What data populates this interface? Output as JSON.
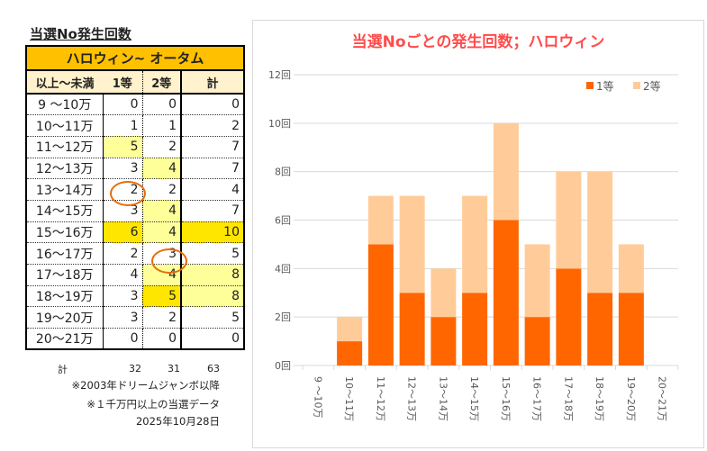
{
  "table": {
    "title": "当選No発生回数",
    "header": "ハロウィン~ オータム",
    "columns": [
      "以上～未満",
      "1等",
      "2等",
      "計"
    ],
    "rows": [
      {
        "range": "9 ～10万",
        "first": 0,
        "second": 0,
        "total": 0
      },
      {
        "range": "10～11万",
        "first": 1,
        "second": 1,
        "total": 2
      },
      {
        "range": "11～12万",
        "first": 5,
        "second": 2,
        "total": 7
      },
      {
        "range": "12～13万",
        "first": 3,
        "second": 4,
        "total": 7
      },
      {
        "range": "13～14万",
        "first": 2,
        "second": 2,
        "total": 4
      },
      {
        "range": "14～15万",
        "first": 3,
        "second": 4,
        "total": 7
      },
      {
        "range": "15～16万",
        "first": 6,
        "second": 4,
        "total": 10
      },
      {
        "range": "16～17万",
        "first": 2,
        "second": 3,
        "total": 5
      },
      {
        "range": "17～18万",
        "first": 4,
        "second": 4,
        "total": 8
      },
      {
        "range": "18～19万",
        "first": 3,
        "second": 5,
        "total": 8
      },
      {
        "range": "19～20万",
        "first": 3,
        "second": 2,
        "total": 5
      },
      {
        "range": "20～21万",
        "first": 0,
        "second": 0,
        "total": 0
      }
    ],
    "highlight": {
      "light": "#ffff99",
      "bright": "#ffe600"
    },
    "totals": {
      "label": "計",
      "first": 32,
      "second": 31,
      "total": 63
    },
    "notes": [
      "※2003年ドリームジャンボ以降",
      "※１千万円以上の当選データ",
      "2025年10月28日"
    ]
  },
  "chart_data": {
    "type": "bar",
    "stacked": true,
    "title": "当選Noごとの発生回数；ハロウィン",
    "categories": [
      "9 ～10万",
      "10～11万",
      "11～12万",
      "12～13万",
      "13～14万",
      "14～15万",
      "15～16万",
      "16～17万",
      "17～18万",
      "18～19万",
      "19～20万",
      "20～21万"
    ],
    "series": [
      {
        "name": "1等",
        "color": "#ff6600",
        "values": [
          0,
          1,
          5,
          3,
          2,
          3,
          6,
          2,
          4,
          3,
          3,
          0
        ]
      },
      {
        "name": "2等",
        "color": "#ffcc99",
        "values": [
          0,
          1,
          2,
          4,
          2,
          4,
          4,
          3,
          4,
          5,
          2,
          0
        ]
      }
    ],
    "yticks": [
      "0回",
      "2回",
      "4回",
      "6回",
      "8回",
      "10回",
      "12回"
    ],
    "ylim": [
      0,
      12
    ],
    "grid": true,
    "legend": "top-right",
    "title_color": "#ff4b4b"
  }
}
